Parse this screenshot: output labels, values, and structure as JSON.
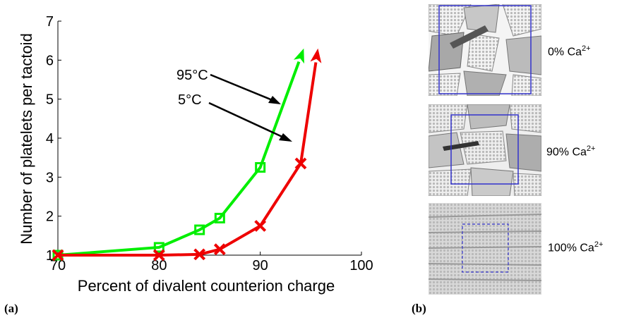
{
  "panel_a_label": "(a)",
  "panel_b_label": "(b)",
  "colors": {
    "series_95C": "#00ee00",
    "series_5C": "#ee0000",
    "box": "#3333cc"
  },
  "chart_data": {
    "type": "line",
    "xlabel": "Percent of divalent counterion charge",
    "ylabel": "Number of platelets per tactoid",
    "xlim": [
      70,
      100
    ],
    "ylim": [
      1,
      7
    ],
    "xticks": [
      70,
      80,
      90,
      100
    ],
    "yticks": [
      1,
      2,
      3,
      4,
      5,
      6,
      7
    ],
    "grid": false,
    "series": [
      {
        "name": "95°C",
        "marker": "square",
        "color": "#00ee00",
        "x": [
          70,
          80,
          84,
          86,
          90
        ],
        "y": [
          1.0,
          1.2,
          1.65,
          1.95,
          3.25
        ],
        "arrow_end": {
          "x": 94.3,
          "y": 6.3
        }
      },
      {
        "name": "5°C",
        "marker": "x",
        "color": "#ee0000",
        "x": [
          70,
          80,
          84,
          86,
          90,
          94
        ],
        "y": [
          1.0,
          1.0,
          1.02,
          1.15,
          1.75,
          3.35
        ],
        "arrow_end": {
          "x": 95.7,
          "y": 6.3
        }
      }
    ],
    "annotations": [
      {
        "text": "95°C",
        "points_to": "95°C"
      },
      {
        "text": "5°C",
        "points_to": "5°C"
      }
    ]
  },
  "snapshots": [
    {
      "label": "0% Ca",
      "superscript": "2+"
    },
    {
      "label": "90% Ca",
      "superscript": "2+"
    },
    {
      "label": "100% Ca",
      "superscript": "2+"
    }
  ]
}
